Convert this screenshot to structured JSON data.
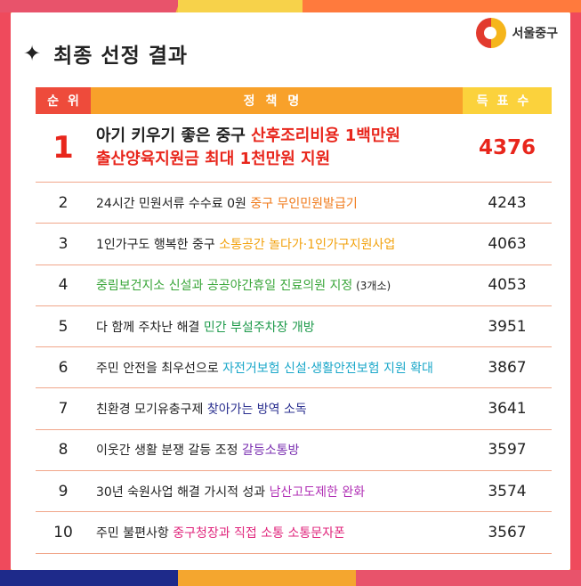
{
  "title": {
    "star": "✦",
    "text": "최종 선정 결과"
  },
  "logo": {
    "text": "서울중구"
  },
  "header": {
    "rank": "순위",
    "policy": "정책명",
    "votes": "득표수"
  },
  "rows": [
    {
      "rank": "1",
      "line1_plain": "아기 키우기 좋은 중구 ",
      "line1_hl": "산후조리비용 1백만원",
      "line2_hl": "출산양육지원금 최대 1천만원 지원",
      "votes": "4376"
    },
    {
      "rank": "2",
      "plain": "24시간 민원서류 수수료 0원 ",
      "hl": "중구 무인민원발급기",
      "votes": "4243"
    },
    {
      "rank": "3",
      "plain": "1인가구도 행복한 중구 ",
      "hl": "소통공간 놀다가·1인가구지원사업",
      "votes": "4063"
    },
    {
      "rank": "4",
      "hl": "중림보건지소 신설과 공공야간휴일 진료의원 지정",
      "suffix": " (3개소)",
      "votes": "4053"
    },
    {
      "rank": "5",
      "plain": "다 함께 주차난 해결 ",
      "hl": "민간 부설주차장 개방",
      "votes": "3951"
    },
    {
      "rank": "6",
      "plain": "주민 안전을 최우선으로 ",
      "hl": "자전거보험 신설·생활안전보험 지원 확대",
      "votes": "3867"
    },
    {
      "rank": "7",
      "plain": "친환경 모기유충구제 ",
      "hl": "찾아가는 방역 소독",
      "votes": "3641"
    },
    {
      "rank": "8",
      "plain": "이웃간 생활 분쟁 갈등 조정 ",
      "hl": "갈등소통방",
      "votes": "3597"
    },
    {
      "rank": "9",
      "plain": "30년 숙원사업 해결 가시적 성과 ",
      "hl": "남산고도제한 완화",
      "votes": "3574"
    },
    {
      "rank": "10",
      "plain": "주민 불편사항 ",
      "hl": "중구청장과 직접 소통 소통문자폰",
      "votes": "3567"
    }
  ]
}
